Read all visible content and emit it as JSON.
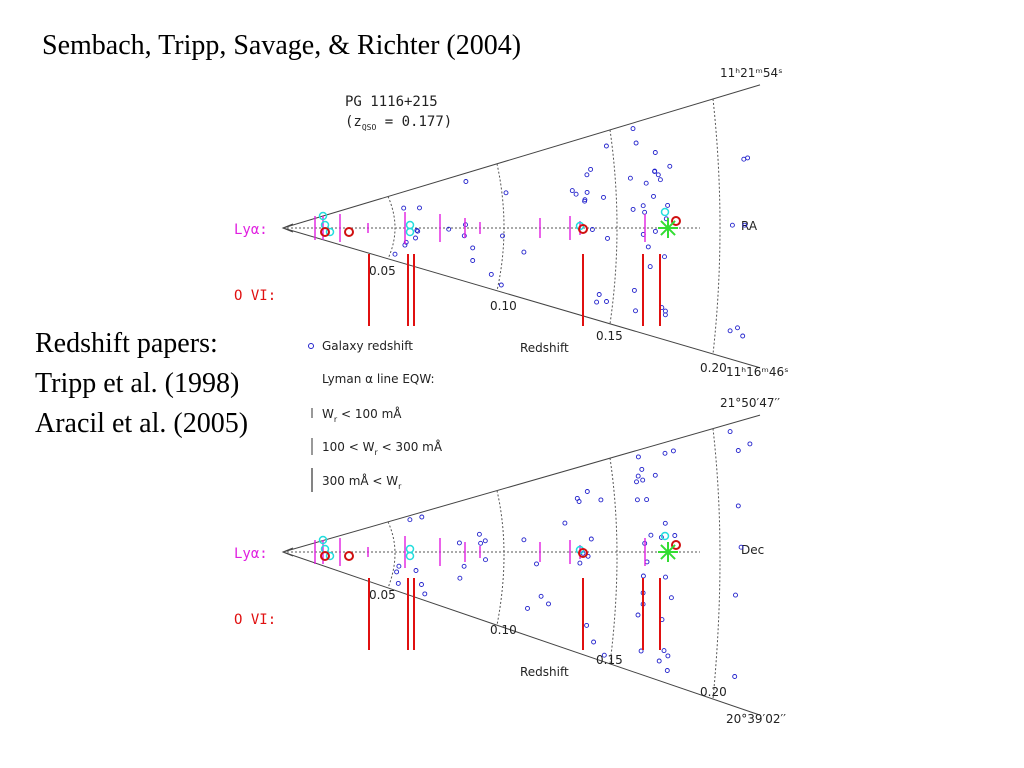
{
  "title": "Sembach, Tripp, Savage, & Richter (2004)",
  "papers": [
    "Redshift papers:",
    "Tripp et al. (1998)",
    "Aracil et al. (2005)"
  ],
  "ra_panel": {
    "object": "PG 1116+215",
    "zqso": {
      "open": "(z",
      "sub": "QSO",
      "rest": " = 0.177)"
    },
    "lya": "Lyα:",
    "ovi": "O VI:",
    "ticks": [
      "0.05",
      "0.10",
      "0.15",
      "0.20"
    ],
    "xlabel": "Redshift",
    "coord": "RA",
    "edge_top": "11ʰ21ᵐ54ˢ",
    "edge_bottom": "11ʰ16ᵐ46ˢ"
  },
  "dec_panel": {
    "lya": "Lyα:",
    "ovi": "O VI:",
    "ticks": [
      "0.05",
      "0.10",
      "0.15",
      "0.20"
    ],
    "xlabel": "Redshift",
    "coord": "Dec",
    "edge_top": "21°50′47′′",
    "edge_bottom": "20°39′02′′"
  },
  "legend": {
    "galaxy": "Galaxy redshift",
    "lyman": "Lyman α line EQW:",
    "weak": {
      "pre": "W",
      "sub": "r",
      "post": " < 100 mÅ"
    },
    "medium": {
      "pre": "100 < W",
      "sub": "r",
      "post": " < 300 mÅ"
    },
    "strong": {
      "pre": "300 mÅ < W",
      "sub": "r"
    }
  }
}
